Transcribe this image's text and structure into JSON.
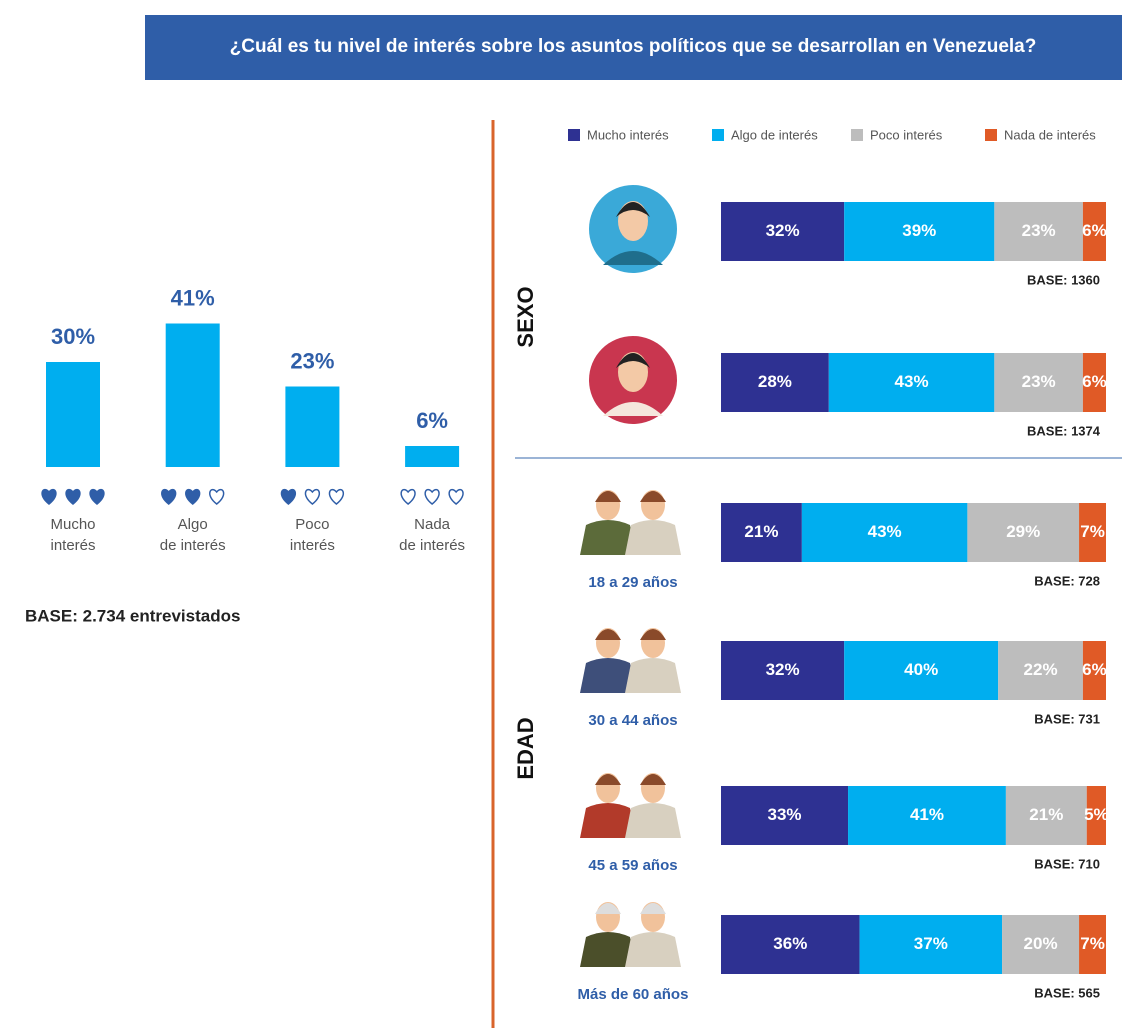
{
  "title": "¿Cuál es tu nivel de interés sobre los asuntos políticos que se desarrollan en Venezuela?",
  "chart_data": [
    {
      "type": "bar",
      "categories": [
        "Mucho\ninterés",
        "Algo\nde interés",
        "Poco\ninterés",
        "Nada\nde interés"
      ],
      "values": [
        30,
        41,
        23,
        6
      ],
      "value_labels": [
        "30%",
        "41%",
        "23%",
        "6%"
      ],
      "color": "#00aeef",
      "base": "BASE: 2.734 entrevistados"
    },
    {
      "type": "stacked-hbar",
      "row_groups": [
        "SEXO",
        "SEXO",
        "EDAD",
        "EDAD",
        "EDAD",
        "EDAD"
      ],
      "categories": [
        null,
        null,
        "18 a 29 años",
        "30 a 44 años",
        "45 a 59 años",
        "Más de 60 años"
      ],
      "bases": [
        "BASE: 1360",
        "BASE: 1374",
        "BASE: 728",
        "BASE: 731",
        "BASE: 710",
        "BASE: 565"
      ],
      "series": [
        {
          "name": "Mucho interés",
          "color": "#2e3192",
          "values": [
            32,
            28,
            21,
            32,
            33,
            36
          ],
          "value_labels": [
            "32%",
            "28%",
            "21%",
            "32%",
            "33%",
            "36%"
          ]
        },
        {
          "name": "Algo de interés",
          "color": "#00aeef",
          "values": [
            39,
            43,
            43,
            40,
            41,
            37
          ],
          "value_labels": [
            "39%",
            "43%",
            "43%",
            "40%",
            "41%",
            "37%"
          ]
        },
        {
          "name": "Poco interés",
          "color": "#bdbdbd",
          "values": [
            23,
            23,
            29,
            22,
            21,
            20
          ],
          "value_labels": [
            "23%",
            "23%",
            "29%",
            "22%",
            "21%",
            "20%"
          ]
        },
        {
          "name": "Nada de interés",
          "color": "#e05a26",
          "values": [
            6,
            6,
            7,
            6,
            5,
            7
          ],
          "value_labels": [
            "6%",
            "6%",
            "7%",
            "6%",
            "5%",
            "7%"
          ]
        }
      ]
    }
  ]
}
